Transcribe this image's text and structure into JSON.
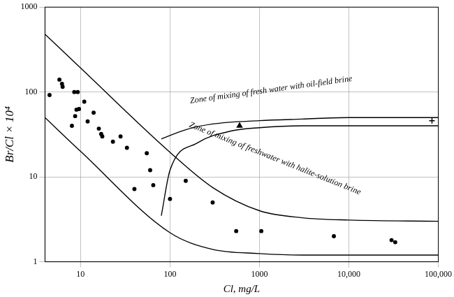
{
  "chart_data": {
    "type": "scatter",
    "x_label": "Cl, mg/L",
    "y_label": "Br/Cl × 10⁴",
    "log": true,
    "grid": true,
    "xlim": [
      4,
      100000
    ],
    "ylim": [
      1,
      1000
    ],
    "xticks": [
      10,
      100,
      1000,
      {
        "value": 10000,
        "label": "10,000"
      },
      {
        "value": 100000,
        "label": "100,000"
      }
    ],
    "yticks": [
      1,
      10,
      100,
      1000
    ],
    "series": [
      {
        "type": "scatter",
        "marker": "circle",
        "color": "#000000",
        "x": [
          4.5,
          5.8,
          6.2,
          6.3,
          8,
          8.5,
          8.7,
          9,
          9.3,
          9.6,
          11,
          12,
          14,
          16,
          17,
          17.5,
          23,
          28,
          33,
          40,
          55,
          60,
          65,
          100,
          150,
          300,
          550,
          1050,
          6800,
          30000,
          33000
        ],
        "values": [
          92,
          140,
          125,
          115,
          40,
          100,
          52,
          62,
          100,
          63,
          77,
          45,
          57,
          37,
          32,
          30,
          26,
          30,
          22,
          7.2,
          19,
          12,
          8,
          5.5,
          9,
          5,
          2.3,
          2.3,
          2,
          1.8,
          1.7
        ]
      },
      {
        "type": "scatter",
        "marker": "triangle",
        "color": "#000000",
        "x": [
          600
        ],
        "values": [
          40
        ]
      },
      {
        "type": "scatter",
        "marker": "cross",
        "color": "#000000",
        "x": [
          85000
        ],
        "values": [
          46
        ]
      },
      {
        "type": "line",
        "line_style": "solid",
        "color": "#000000",
        "x": [
          4,
          10,
          100,
          300,
          1000,
          3000,
          10000,
          100000
        ],
        "values": [
          480,
          192,
          19.5,
          7.5,
          4,
          3.3,
          3.1,
          3.0
        ]
      },
      {
        "type": "line",
        "line_style": "solid",
        "color": "#000000",
        "x": [
          4,
          10,
          100,
          300,
          1000,
          3000,
          10000,
          100000
        ],
        "values": [
          50,
          20,
          2.2,
          1.4,
          1.25,
          1.2,
          1.2,
          1.2
        ]
      },
      {
        "type": "line",
        "line_style": "solid",
        "color": "#000000",
        "x": [
          80,
          150,
          300,
          1000,
          3000,
          10000,
          100000
        ],
        "values": [
          28,
          36,
          42,
          46,
          48,
          50,
          50
        ]
      },
      {
        "type": "line",
        "line_style": "solid",
        "color": "#000000",
        "x": [
          80,
          100,
          200,
          500,
          1000,
          3000,
          10000,
          100000
        ],
        "values": [
          3.5,
          12,
          25,
          35,
          38,
          40,
          40,
          40
        ]
      }
    ],
    "annotations": [
      {
        "text": "Zone of mixing of fresh water with oil-field brine"
      },
      {
        "text": "Zone of mixing of freshwater with halite-solution brine"
      }
    ]
  }
}
